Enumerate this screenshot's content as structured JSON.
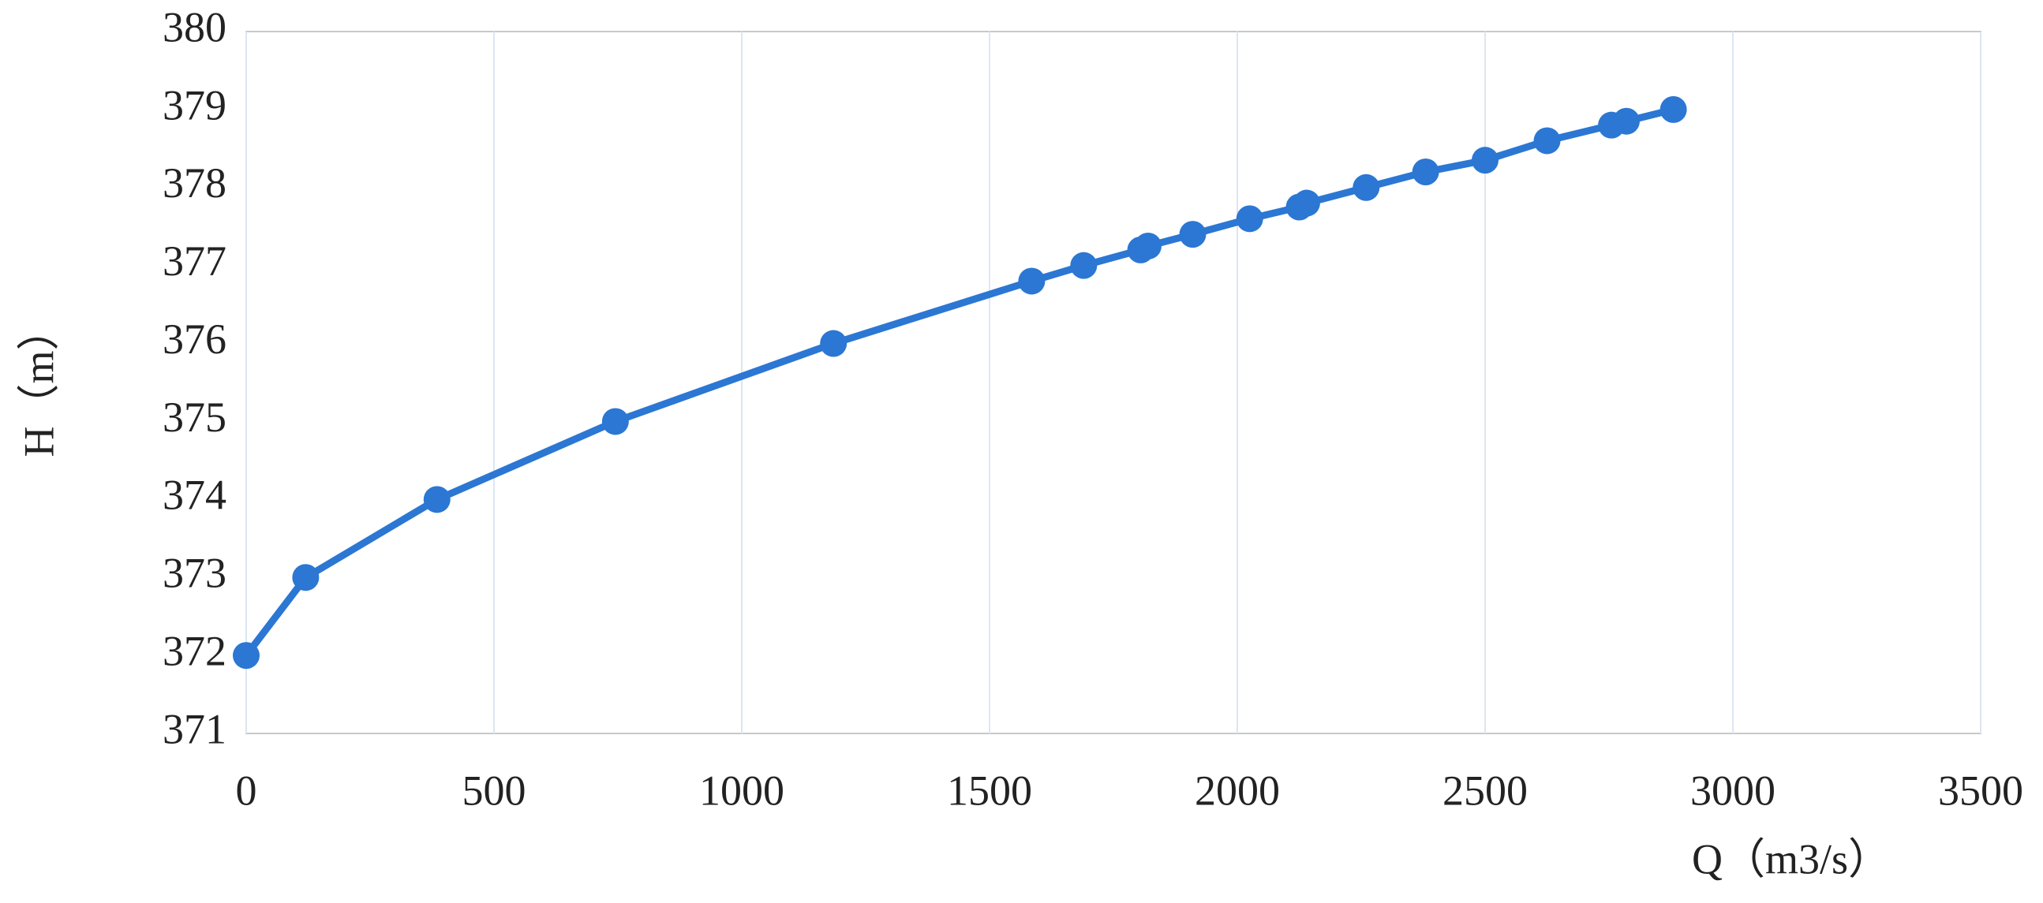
{
  "chart_data": {
    "type": "line",
    "x_label": "Q（m3/s）",
    "y_label": "H（m）",
    "series": [
      {
        "color": "#2b77d3",
        "x": [
          0,
          120,
          385,
          745,
          1185,
          1585,
          1690,
          1805,
          1820,
          1910,
          2025,
          2125,
          2140,
          2260,
          2380,
          2500,
          2625,
          2755,
          2785,
          2880
        ],
        "values": [
          372,
          373,
          374,
          375,
          376,
          376.8,
          377,
          377.2,
          377.25,
          377.4,
          377.6,
          377.75,
          377.8,
          378,
          378.2,
          378.35,
          378.6,
          378.8,
          378.85,
          379
        ]
      }
    ],
    "xlim": [
      0,
      3500
    ],
    "xticks": [
      0,
      500,
      1000,
      1500,
      2000,
      2500,
      3000,
      3500
    ],
    "ylim": [
      371,
      380
    ],
    "yticks": [
      371,
      372,
      373,
      374,
      375,
      376,
      377,
      378,
      379,
      380
    ],
    "grid": true
  }
}
